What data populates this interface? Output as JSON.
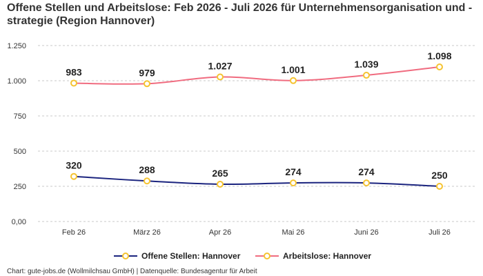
{
  "title": "Offene Stellen und Arbeitslose: Feb 2026 - Juli 2026 für Unternehmensorganisation und -strategie (Region Hannover)",
  "footer": "Chart: gute-jobs.de (Wollmilchsau GmbH) | Datenquelle: Bundesagentur für Arbeit",
  "chart_data": {
    "type": "line",
    "title": "Offene Stellen und Arbeitslose: Feb 2026 - Juli 2026 für Unternehmensorganisation und -strategie (Region Hannover)",
    "xlabel": "",
    "ylabel": "",
    "categories": [
      "Feb 26",
      "März 26",
      "Apr 26",
      "Mai 26",
      "Juni 26",
      "Juli 26"
    ],
    "ylim": [
      0,
      1250
    ],
    "yticks": [
      0,
      250,
      500,
      750,
      1000,
      1250
    ],
    "ytick_labels": [
      "0,00",
      "250",
      "500",
      "750",
      "1.000",
      "1.250"
    ],
    "grid": true,
    "legend_position": "bottom",
    "series": [
      {
        "name": "Offene Stellen: Hannover",
        "color": "#1a237e",
        "values": [
          320,
          288,
          265,
          274,
          274,
          250
        ],
        "labels": [
          "320",
          "288",
          "265",
          "274",
          "274",
          "250"
        ]
      },
      {
        "name": "Arbeitslose: Hannover",
        "color": "#f06b7f",
        "values": [
          983,
          979,
          1027,
          1001,
          1039,
          1098
        ],
        "labels": [
          "983",
          "979",
          "1.027",
          "1.001",
          "1.039",
          "1.098"
        ]
      }
    ],
    "marker_color": "#f5c330"
  }
}
